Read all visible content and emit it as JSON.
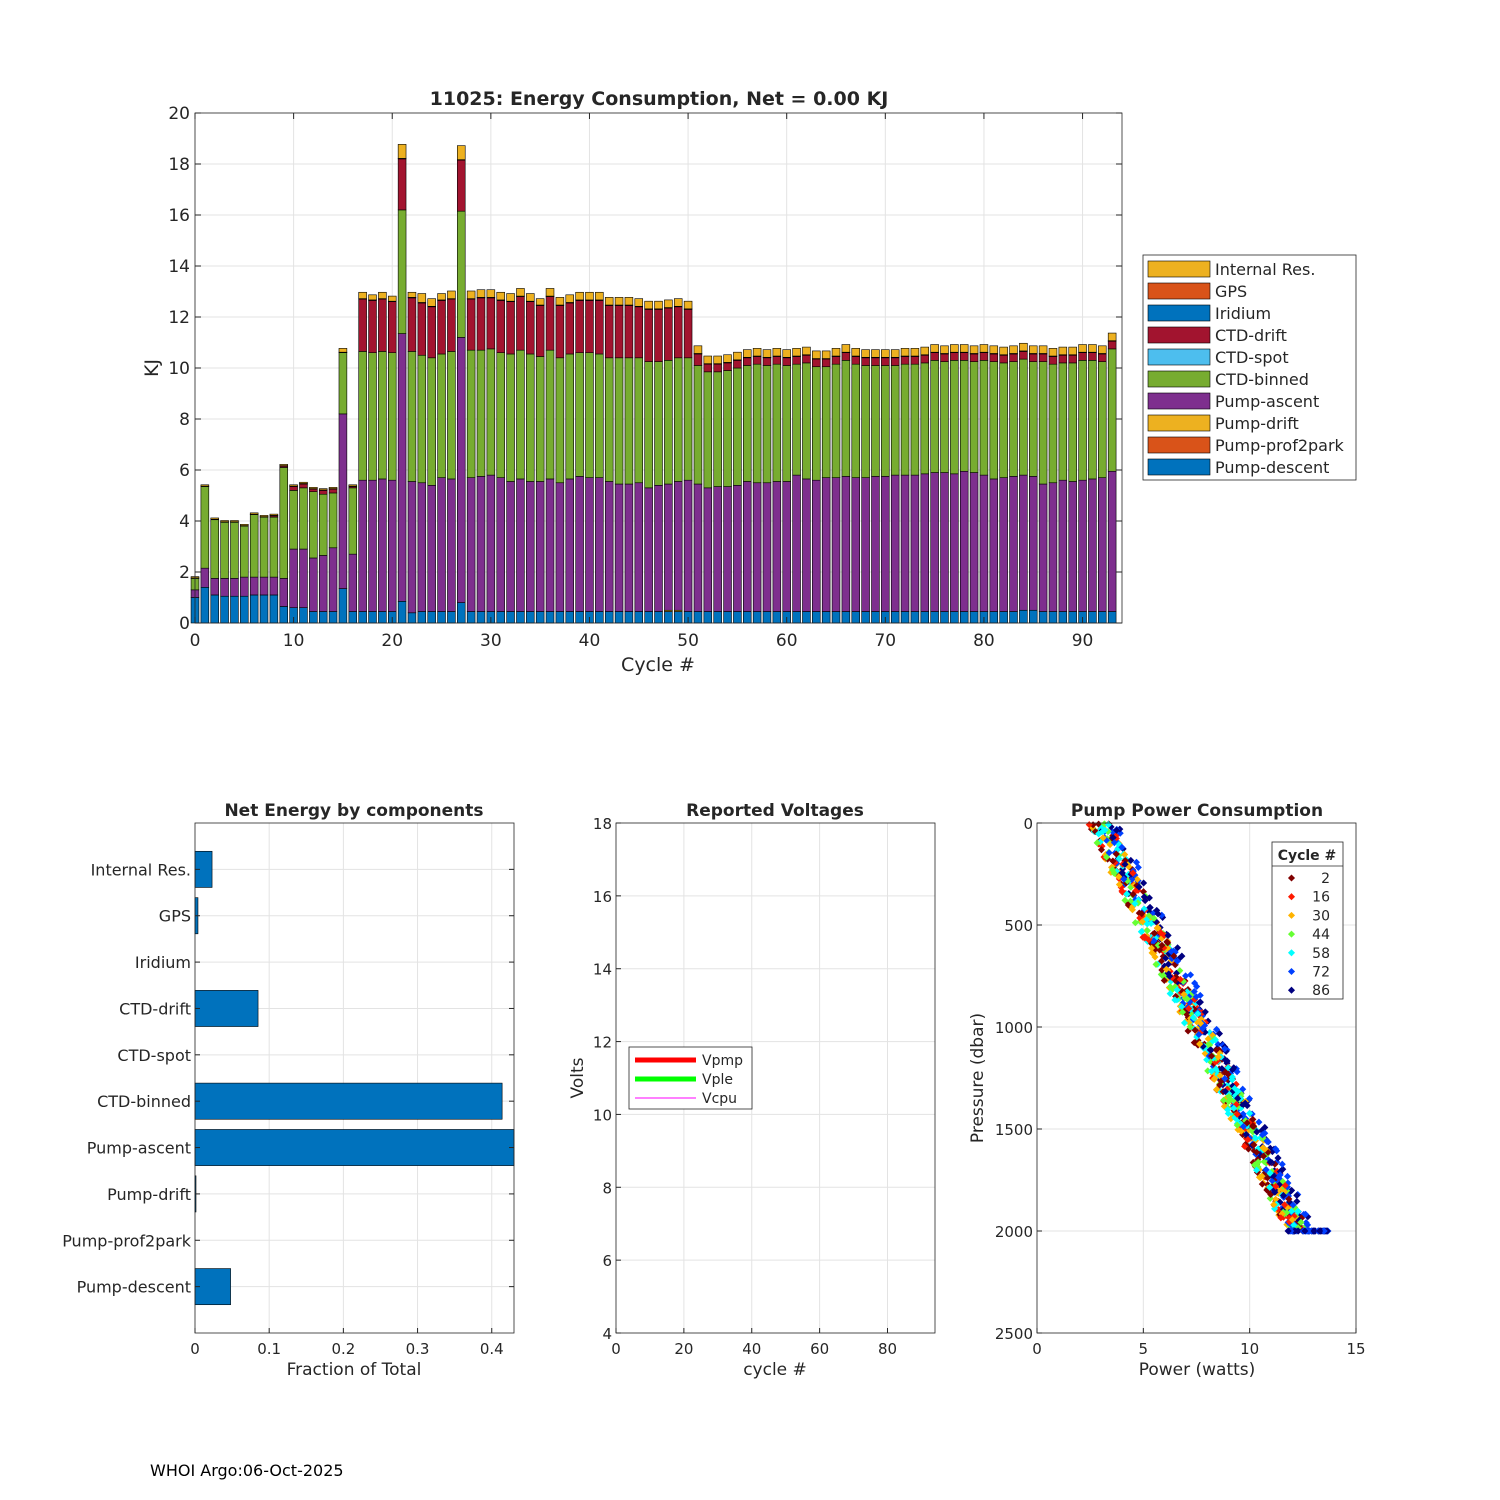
{
  "footer": "WHOI Argo:06-Oct-2025",
  "colors": {
    "pump_descent": "#0072BD",
    "pump_prof2park": "#D95319",
    "pump_drift": "#EDB120",
    "pump_ascent": "#7E2F8E",
    "ctd_binned": "#77AC30",
    "ctd_spot": "#4DBEEE",
    "ctd_drift": "#A2142F",
    "iridium": "#0072BD",
    "gps": "#D95319",
    "internal_res": "#EDB120",
    "vpmp": "#FF0000",
    "vple": "#00FF00",
    "vcpu": "#FF00FF"
  },
  "chart_data": [
    {
      "id": "energy",
      "type": "bar",
      "stacked": true,
      "title": "11025: Energy Consumption,  Net =   0.00 KJ",
      "xlabel": "Cycle #",
      "ylabel": "KJ",
      "xlim": [
        0,
        94
      ],
      "ylim": [
        0,
        20
      ],
      "xticks": [
        0,
        10,
        20,
        30,
        40,
        50,
        60,
        70,
        80,
        90
      ],
      "yticks": [
        0,
        2,
        4,
        6,
        8,
        10,
        12,
        14,
        16,
        18,
        20
      ],
      "grid": true,
      "legend_position": "outside-right",
      "legend": [
        "Internal Res.",
        "GPS",
        "Iridium",
        "CTD-drift",
        "CTD-spot",
        "CTD-binned",
        "Pump-ascent",
        "Pump-drift",
        "Pump-prof2park",
        "Pump-descent"
      ],
      "cycles_desc": "cycles 0 through 93",
      "series_desc": "see chart_series"
    },
    {
      "id": "net",
      "type": "bar",
      "orientation": "horizontal",
      "title": "Net Energy by components",
      "xlabel": "Fraction of Total",
      "xlim": [
        0,
        0.43
      ],
      "xticks": [
        0,
        0.1,
        0.2,
        0.3,
        0.4
      ],
      "xticklabels": [
        "0",
        "0.1",
        "0.2",
        "0.3",
        "0.4"
      ],
      "grid": true,
      "categories": [
        "Internal Res.",
        "GPS",
        "Iridium",
        "CTD-drift",
        "CTD-spot",
        "CTD-binned",
        "Pump-ascent",
        "Pump-drift",
        "Pump-prof2park",
        "Pump-descent"
      ],
      "values": [
        0.023,
        0.004,
        0.0,
        0.085,
        0.0,
        0.414,
        0.43,
        0.001,
        0.0,
        0.048
      ]
    },
    {
      "id": "volts",
      "type": "line",
      "title": "Reported Voltages",
      "xlabel": "cycle #",
      "ylabel": "Volts",
      "xlim": [
        0,
        94
      ],
      "ylim": [
        4,
        18
      ],
      "xticks": [
        0,
        20,
        40,
        60,
        80
      ],
      "yticks": [
        4,
        6,
        8,
        10,
        12,
        14,
        16,
        18
      ],
      "grid": true,
      "legend_position": "middle-left",
      "series": [
        {
          "name": "Vpmp",
          "values": []
        },
        {
          "name": "Vple",
          "values": []
        },
        {
          "name": "Vcpu",
          "values": []
        }
      ]
    },
    {
      "id": "pump",
      "type": "scatter",
      "title": "Pump Power Consumption",
      "xlabel": "Power (watts)",
      "ylabel": "Pressure (dbar)",
      "xlim": [
        0,
        15
      ],
      "ylim": [
        0,
        2500
      ],
      "y_reversed": true,
      "xticks": [
        0,
        5,
        10,
        15
      ],
      "yticks": [
        0,
        500,
        1000,
        1500,
        2000,
        2500
      ],
      "grid": true,
      "legend_title": "Cycle #",
      "legend_position": "top-right",
      "legend": [
        {
          "label": "2",
          "color": "#800000"
        },
        {
          "label": "16",
          "color": "#FF1A00"
        },
        {
          "label": "30",
          "color": "#FFB300"
        },
        {
          "label": "44",
          "color": "#66FF33"
        },
        {
          "label": "58",
          "color": "#00FFFF"
        },
        {
          "label": "72",
          "color": "#0040FF"
        },
        {
          "label": "86",
          "color": "#000080"
        }
      ],
      "trend": {
        "p0_power": 2.9,
        "p2000_power": 12.2
      }
    }
  ],
  "chart_series": {
    "cycles": [
      0,
      1,
      2,
      3,
      4,
      5,
      6,
      7,
      8,
      9,
      10,
      11,
      12,
      13,
      14,
      15,
      16,
      17,
      18,
      19,
      20,
      21,
      22,
      23,
      24,
      25,
      26,
      27,
      28,
      29,
      30,
      31,
      32,
      33,
      34,
      35,
      36,
      37,
      38,
      39,
      40,
      41,
      42,
      43,
      44,
      45,
      46,
      47,
      48,
      49,
      50,
      51,
      52,
      53,
      54,
      55,
      56,
      57,
      58,
      59,
      60,
      61,
      62,
      63,
      64,
      65,
      66,
      67,
      68,
      69,
      70,
      71,
      72,
      73,
      74,
      75,
      76,
      77,
      78,
      79,
      80,
      81,
      82,
      83,
      84,
      85,
      86,
      87,
      88,
      89,
      90,
      91,
      92,
      93
    ],
    "pump_descent": [
      1.0,
      1.4,
      1.1,
      1.05,
      1.05,
      1.05,
      1.1,
      1.1,
      1.1,
      0.65,
      0.6,
      0.6,
      0.45,
      0.45,
      0.45,
      1.35,
      0.45,
      0.45,
      0.45,
      0.45,
      0.45,
      0.85,
      0.4,
      0.45,
      0.45,
      0.45,
      0.45,
      0.8,
      0.45,
      0.45,
      0.45,
      0.45,
      0.45,
      0.45,
      0.45,
      0.45,
      0.45,
      0.45,
      0.45,
      0.45,
      0.45,
      0.45,
      0.45,
      0.45,
      0.45,
      0.45,
      0.45,
      0.45,
      0.45,
      0.45,
      0.45,
      0.45,
      0.45,
      0.45,
      0.45,
      0.45,
      0.45,
      0.45,
      0.45,
      0.45,
      0.45,
      0.45,
      0.45,
      0.45,
      0.45,
      0.45,
      0.45,
      0.45,
      0.45,
      0.45,
      0.45,
      0.45,
      0.45,
      0.45,
      0.45,
      0.45,
      0.45,
      0.45,
      0.45,
      0.45,
      0.45,
      0.45,
      0.45,
      0.45,
      0.5,
      0.5,
      0.45,
      0.45,
      0.45,
      0.45,
      0.45,
      0.45,
      0.45,
      0.45
    ],
    "pump_prof2park": [
      0,
      0,
      0,
      0,
      0,
      0,
      0,
      0,
      0,
      0,
      0,
      0,
      0,
      0,
      0,
      0,
      0,
      0,
      0,
      0,
      0,
      0,
      0,
      0,
      0,
      0,
      0,
      0,
      0,
      0,
      0,
      0,
      0,
      0,
      0,
      0,
      0,
      0,
      0,
      0,
      0,
      0,
      0,
      0,
      0,
      0,
      0,
      0,
      0,
      0,
      0,
      0,
      0,
      0,
      0,
      0,
      0,
      0,
      0,
      0,
      0,
      0,
      0,
      0,
      0,
      0,
      0,
      0,
      0,
      0,
      0,
      0,
      0,
      0,
      0,
      0,
      0,
      0,
      0,
      0,
      0,
      0,
      0,
      0,
      0,
      0,
      0,
      0,
      0,
      0,
      0,
      0,
      0,
      0
    ],
    "pump_drift": [
      0,
      0,
      0,
      0,
      0,
      0,
      0,
      0,
      0,
      0,
      0,
      0,
      0,
      0,
      0,
      0,
      0,
      0,
      0,
      0,
      0,
      0,
      0,
      0,
      0,
      0,
      0,
      0,
      0,
      0,
      0,
      0,
      0,
      0,
      0,
      0,
      0,
      0,
      0,
      0,
      0,
      0,
      0,
      0,
      0,
      0,
      0,
      0,
      0.05,
      0.05,
      0,
      0,
      0,
      0,
      0,
      0,
      0,
      0,
      0,
      0,
      0,
      0,
      0,
      0,
      0,
      0,
      0,
      0,
      0,
      0,
      0,
      0,
      0,
      0,
      0,
      0,
      0,
      0,
      0,
      0,
      0,
      0,
      0,
      0,
      0,
      0,
      0,
      0,
      0,
      0,
      0,
      0,
      0,
      0
    ],
    "pump_ascent": [
      0.3,
      0.75,
      0.65,
      0.7,
      0.7,
      0.75,
      0.7,
      0.7,
      0.7,
      1.1,
      2.3,
      2.3,
      2.1,
      2.2,
      2.5,
      6.85,
      2.25,
      5.15,
      5.15,
      5.2,
      5.15,
      10.5,
      5.15,
      5.05,
      4.95,
      5.25,
      5.2,
      10.4,
      5.25,
      5.3,
      5.35,
      5.25,
      5.1,
      5.2,
      5.1,
      5.1,
      5.2,
      5.05,
      5.2,
      5.3,
      5.25,
      5.25,
      5.1,
      5.0,
      5.0,
      5.05,
      4.85,
      4.95,
      4.95,
      5.05,
      5.15,
      5.0,
      4.85,
      4.9,
      4.9,
      4.95,
      5.1,
      5.05,
      5.05,
      5.1,
      5.1,
      5.35,
      5.2,
      5.15,
      5.25,
      5.25,
      5.3,
      5.25,
      5.25,
      5.3,
      5.3,
      5.35,
      5.35,
      5.35,
      5.4,
      5.45,
      5.45,
      5.4,
      5.5,
      5.45,
      5.35,
      5.2,
      5.25,
      5.3,
      5.3,
      5.25,
      5.0,
      5.05,
      5.15,
      5.1,
      5.15,
      5.2,
      5.25,
      5.5
    ],
    "ctd_binned": [
      0.45,
      3.2,
      2.3,
      2.2,
      2.2,
      2.0,
      2.45,
      2.35,
      2.35,
      4.35,
      2.3,
      2.4,
      2.6,
      2.4,
      2.15,
      2.4,
      2.6,
      5.05,
      5.0,
      5.0,
      5.0,
      4.85,
      5.1,
      5.0,
      5.0,
      4.85,
      5.0,
      4.95,
      5.0,
      4.95,
      4.95,
      4.9,
      5.0,
      5.05,
      5.0,
      4.9,
      5.05,
      4.9,
      4.9,
      4.85,
      4.9,
      4.85,
      4.85,
      4.95,
      4.95,
      4.9,
      4.95,
      4.85,
      4.85,
      4.85,
      4.8,
      4.65,
      4.55,
      4.5,
      4.55,
      4.6,
      4.55,
      4.65,
      4.6,
      4.6,
      4.55,
      4.35,
      4.55,
      4.45,
      4.35,
      4.45,
      4.55,
      4.45,
      4.4,
      4.35,
      4.35,
      4.3,
      4.35,
      4.35,
      4.35,
      4.4,
      4.35,
      4.45,
      4.35,
      4.35,
      4.5,
      4.6,
      4.5,
      4.5,
      4.55,
      4.5,
      4.8,
      4.65,
      4.6,
      4.65,
      4.7,
      4.65,
      4.55,
      4.8
    ],
    "ctd_spot": [
      0,
      0,
      0,
      0,
      0,
      0,
      0,
      0,
      0,
      0,
      0,
      0,
      0,
      0,
      0,
      0,
      0,
      0,
      0,
      0,
      0,
      0,
      0,
      0,
      0,
      0,
      0,
      0,
      0,
      0,
      0,
      0,
      0,
      0,
      0,
      0,
      0,
      0,
      0,
      0,
      0,
      0,
      0,
      0,
      0,
      0,
      0,
      0,
      0,
      0,
      0,
      0,
      0,
      0,
      0,
      0,
      0,
      0,
      0,
      0,
      0,
      0,
      0,
      0,
      0,
      0,
      0,
      0,
      0,
      0,
      0,
      0,
      0,
      0,
      0,
      0,
      0,
      0,
      0,
      0,
      0,
      0,
      0,
      0,
      0,
      0,
      0,
      0,
      0,
      0,
      0,
      0,
      0,
      0
    ],
    "ctd_drift": [
      0,
      0,
      0,
      0,
      0,
      0,
      0,
      0,
      0.05,
      0.05,
      0.15,
      0.15,
      0.1,
      0.15,
      0.15,
      0,
      0.05,
      2.05,
      2.05,
      2.05,
      2.0,
      2.0,
      2.1,
      2.05,
      2.0,
      2.1,
      2.05,
      2.0,
      2.0,
      2.05,
      2.0,
      2.05,
      2.05,
      2.1,
      2.05,
      2.0,
      2.1,
      2.05,
      2.0,
      2.05,
      2.05,
      2.1,
      2.05,
      2.05,
      2.05,
      2.0,
      2.05,
      2.05,
      2.05,
      2.0,
      1.9,
      0.45,
      0.3,
      0.3,
      0.3,
      0.3,
      0.3,
      0.3,
      0.3,
      0.3,
      0.3,
      0.3,
      0.3,
      0.3,
      0.3,
      0.3,
      0.3,
      0.3,
      0.3,
      0.3,
      0.3,
      0.3,
      0.3,
      0.3,
      0.3,
      0.3,
      0.3,
      0.3,
      0.3,
      0.3,
      0.3,
      0.3,
      0.3,
      0.3,
      0.3,
      0.3,
      0.3,
      0.3,
      0.3,
      0.3,
      0.3,
      0.3,
      0.3,
      0.3
    ],
    "iridium": [
      0,
      0,
      0,
      0,
      0,
      0,
      0,
      0,
      0,
      0,
      0,
      0,
      0,
      0,
      0,
      0,
      0,
      0,
      0,
      0,
      0,
      0,
      0,
      0,
      0,
      0,
      0,
      0,
      0,
      0,
      0,
      0,
      0,
      0,
      0,
      0,
      0,
      0,
      0,
      0,
      0,
      0,
      0,
      0,
      0,
      0,
      0,
      0,
      0,
      0,
      0,
      0,
      0,
      0,
      0,
      0,
      0,
      0,
      0,
      0,
      0,
      0,
      0,
      0,
      0,
      0,
      0,
      0,
      0,
      0,
      0,
      0,
      0,
      0,
      0,
      0,
      0,
      0,
      0,
      0,
      0,
      0,
      0,
      0,
      0,
      0,
      0,
      0,
      0,
      0,
      0,
      0,
      0,
      0
    ],
    "gps": [
      0.02,
      0.02,
      0.02,
      0.02,
      0.02,
      0.02,
      0.02,
      0.02,
      0.02,
      0.02,
      0.02,
      0.02,
      0.02,
      0.02,
      0.02,
      0.02,
      0.02,
      0.02,
      0.02,
      0.02,
      0.02,
      0.02,
      0.02,
      0.02,
      0.02,
      0.02,
      0.02,
      0.02,
      0.02,
      0.02,
      0.02,
      0.02,
      0.02,
      0.02,
      0.02,
      0.02,
      0.02,
      0.02,
      0.02,
      0.02,
      0.02,
      0.02,
      0.02,
      0.02,
      0.02,
      0.02,
      0.02,
      0.02,
      0.02,
      0.02,
      0.02,
      0.02,
      0.02,
      0.02,
      0.02,
      0.02,
      0.02,
      0.02,
      0.02,
      0.02,
      0.02,
      0.02,
      0.02,
      0.02,
      0.02,
      0.02,
      0.02,
      0.02,
      0.02,
      0.02,
      0.02,
      0.02,
      0.02,
      0.02,
      0.02,
      0.02,
      0.02,
      0.02,
      0.02,
      0.02,
      0.02,
      0.02,
      0.02,
      0.02,
      0.02,
      0.02,
      0.02,
      0.02,
      0.02,
      0.02,
      0.02,
      0.02,
      0.02,
      0.02
    ],
    "internal_res": [
      0.05,
      0.05,
      0.05,
      0.05,
      0.05,
      0.05,
      0.05,
      0.05,
      0.05,
      0.05,
      0.05,
      0.05,
      0.05,
      0.05,
      0.05,
      0.15,
      0.05,
      0.25,
      0.2,
      0.25,
      0.2,
      0.55,
      0.2,
      0.35,
      0.3,
      0.25,
      0.3,
      0.55,
      0.3,
      0.3,
      0.3,
      0.3,
      0.3,
      0.3,
      0.3,
      0.25,
      0.3,
      0.3,
      0.3,
      0.3,
      0.3,
      0.3,
      0.3,
      0.3,
      0.3,
      0.3,
      0.3,
      0.3,
      0.3,
      0.3,
      0.3,
      0.3,
      0.3,
      0.3,
      0.3,
      0.3,
      0.3,
      0.3,
      0.3,
      0.3,
      0.3,
      0.3,
      0.3,
      0.3,
      0.3,
      0.3,
      0.3,
      0.3,
      0.3,
      0.3,
      0.3,
      0.3,
      0.3,
      0.3,
      0.3,
      0.3,
      0.3,
      0.3,
      0.3,
      0.3,
      0.3,
      0.3,
      0.3,
      0.3,
      0.3,
      0.3,
      0.3,
      0.3,
      0.3,
      0.3,
      0.3,
      0.3,
      0.3,
      0.3
    ]
  }
}
